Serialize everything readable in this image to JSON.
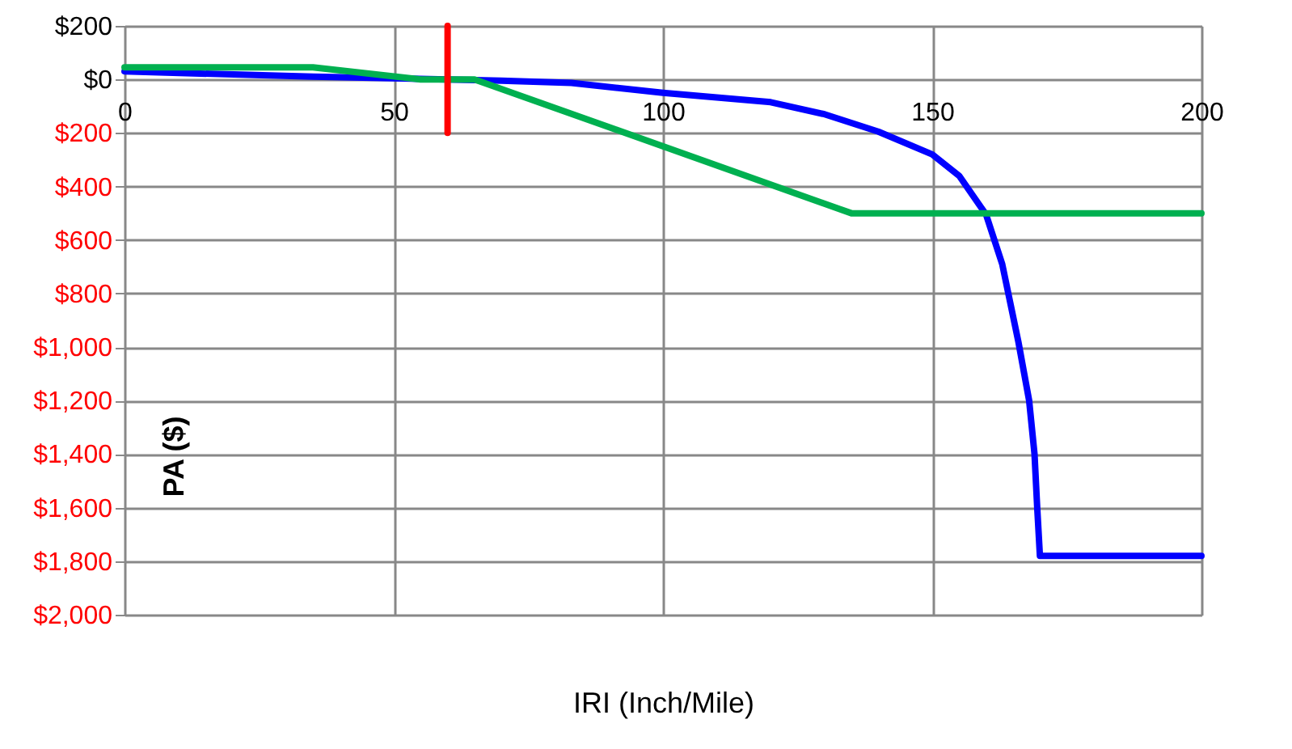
{
  "chart_data": {
    "type": "line",
    "xlabel": "IRI (Inch/Mile)",
    "ylabel": "PA ($)",
    "xlim": [
      0,
      200
    ],
    "xticks": [
      0,
      50,
      100,
      150,
      200
    ],
    "ylim": [
      -2000,
      200
    ],
    "yticks": [
      {
        "value": 200,
        "label": "$200"
      },
      {
        "value": 0,
        "label": "$0"
      },
      {
        "value": -200,
        "label": "$200"
      },
      {
        "value": -400,
        "label": "$400"
      },
      {
        "value": -600,
        "label": "$600"
      },
      {
        "value": -800,
        "label": "$800"
      },
      {
        "value": -1000,
        "label": "$1,000"
      },
      {
        "value": -1200,
        "label": "$1,200"
      },
      {
        "value": -1400,
        "label": "$1,400"
      },
      {
        "value": -1600,
        "label": "$1,600"
      },
      {
        "value": -1800,
        "label": "$1,800"
      },
      {
        "value": -2000,
        "label": "$2,000"
      }
    ],
    "grid": true,
    "marker": "none",
    "line_style": "solid",
    "series": [
      {
        "color": "#0000ff",
        "x": [
          0,
          35,
          60,
          70,
          83,
          100,
          120,
          130,
          140,
          150,
          155,
          160,
          163,
          166,
          168,
          169,
          169.5,
          170,
          200
        ],
        "values": [
          30,
          10,
          0,
          -5,
          -13,
          -50,
          -85,
          -130,
          -195,
          -280,
          -360,
          -505,
          -690,
          -980,
          -1200,
          -1400,
          -1600,
          -1780,
          -1780
        ]
      },
      {
        "color": "#00b050",
        "x": [
          0,
          35,
          55,
          65,
          135,
          200
        ],
        "values": [
          45,
          45,
          0,
          0,
          -500,
          -500
        ]
      },
      {
        "color": "#ff0000",
        "x": [
          60,
          60
        ],
        "values": [
          200,
          -200
        ]
      }
    ]
  }
}
